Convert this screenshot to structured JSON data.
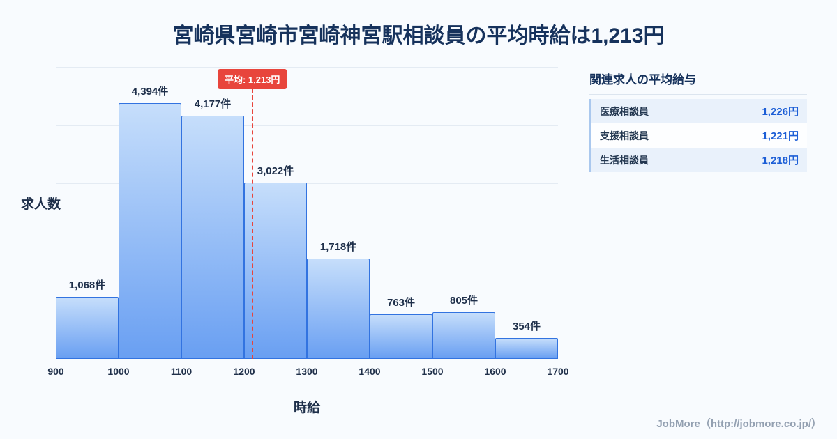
{
  "title": "宮崎県宮崎市宮崎神宮駅相談員の平均時給は1,213円",
  "chart_data": {
    "type": "bar",
    "title": "宮崎県宮崎市宮崎神宮駅相談員の平均時給は1,213円",
    "xlabel": "時給",
    "ylabel": "求人数",
    "bin_edges": [
      900,
      1000,
      1100,
      1200,
      1300,
      1400,
      1500,
      1600,
      1700
    ],
    "values": [
      1068,
      4394,
      4177,
      3022,
      1718,
      763,
      805,
      354
    ],
    "bar_labels": [
      "1,068件",
      "4,394件",
      "4,177件",
      "3,022件",
      "1,718件",
      "763件",
      "805件",
      "354件"
    ],
    "mean_value": 1213,
    "mean_label": "平均: 1,213円",
    "ylim": [
      0,
      5000
    ],
    "ytick_step": 1000,
    "grid": true,
    "legend": false,
    "colors": {
      "bar_top": "#c6defb",
      "bar_bottom": "#699ff2",
      "bar_border": "#3273e0",
      "mean_line": "#e8453c",
      "grid_line": "#e4ebf3",
      "accent_blue": "#1c5ed6",
      "title_navy": "#16325c"
    }
  },
  "side_panel": {
    "title": "関連求人の平均給与",
    "rows": [
      {
        "label": "医療相談員",
        "value": "1,226円"
      },
      {
        "label": "支援相談員",
        "value": "1,221円"
      },
      {
        "label": "生活相談員",
        "value": "1,218円"
      }
    ]
  },
  "footer": {
    "credit": "JobMore（http://jobmore.co.jp/）"
  }
}
